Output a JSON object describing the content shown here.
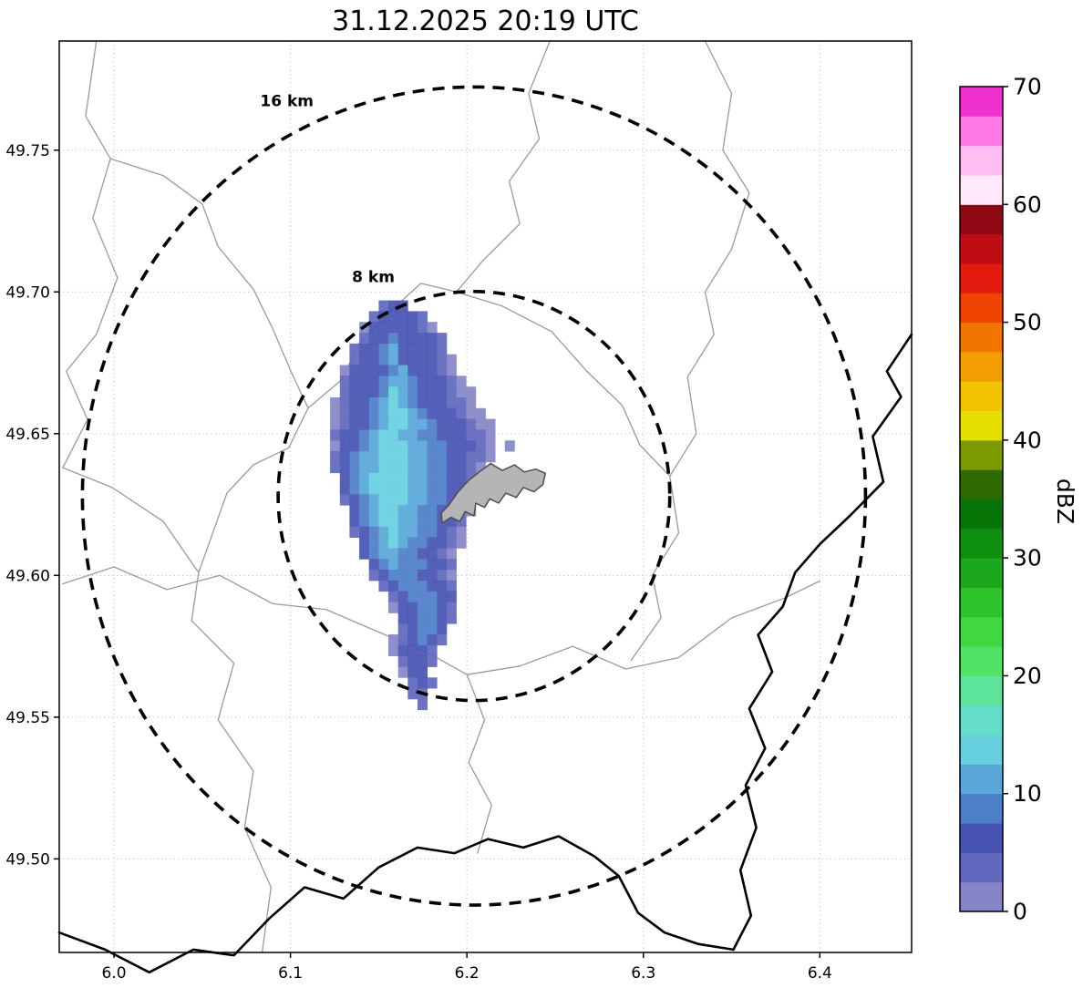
{
  "chart_data": {
    "type": "heatmap",
    "title": "31.12.2025 20:19 UTC",
    "axes": {
      "xlim": [
        5.969,
        6.452
      ],
      "ylim": [
        49.467,
        49.7885
      ],
      "x_ticks": [
        6.0,
        6.1,
        6.2,
        6.3,
        6.4
      ],
      "x_tick_labels": [
        "6.0",
        "6.1",
        "6.2",
        "6.3",
        "6.4"
      ],
      "y_ticks": [
        49.5,
        49.55,
        49.6,
        49.65,
        49.7,
        49.75
      ],
      "y_tick_labels": [
        "49.50",
        "49.55",
        "49.60",
        "49.65",
        "49.70",
        "49.75"
      ],
      "grid": "dotted"
    },
    "colorbar": {
      "label": "dBZ",
      "min": 0,
      "max": 70,
      "ticks": [
        0,
        10,
        20,
        30,
        40,
        50,
        60,
        70
      ],
      "segment_size": 2.5,
      "colors": [
        "#8585c7",
        "#6067bd",
        "#4753b2",
        "#4d7ec8",
        "#58a7d8",
        "#66cfe0",
        "#63dcc8",
        "#5ce49a",
        "#50e365",
        "#3fd83f",
        "#2cc32c",
        "#1ca81c",
        "#0f8f0f",
        "#077407",
        "#2d6b00",
        "#7d9900",
        "#e6e000",
        "#f2c400",
        "#f29e00",
        "#f27500",
        "#ee4400",
        "#e31a0e",
        "#c00d14",
        "#8f0712",
        "#ffe9fb",
        "#ffbdf2",
        "#ff7ae4",
        "#ef2fd0"
      ]
    },
    "range_rings": {
      "center": [
        6.204,
        49.628
      ],
      "radii_km": [
        8,
        16
      ],
      "labels": [
        "8 km",
        "16 km"
      ],
      "label_positions": [
        [
          6.147,
          49.7035
        ],
        [
          6.098,
          49.7655
        ]
      ]
    },
    "radar_grid": {
      "lon0": 6.106,
      "lat0": 49.697,
      "dlon": 0.0055,
      "dlat": 0.0038,
      "levels": {
        "1": 1,
        "2": 4,
        "3": 6,
        "4": 9,
        "5": 11,
        "6": 14,
        "7": 16
      },
      "rows": [
        "........233.............",
        ".......233332...........",
        "......13333321..........",
        "......233433332.........",
        ".....2334533332.........",
        ".....23345333321........",
        "....133334533321........",
        "....2333455433321.......",
        "....23334654333211......",
        "...123345654333221......",
        "...1233456654333211.....",
        "...12334566554333211....",
        "...23345665544333221....",
        "...13345666554433321.1..",
        "...23455666554433221....",
        "...2345566655443321.....",
        "....345666655443321.2...",
        "....34566665544332......",
        "....23456665544321......",
        ".....3456655443321......",
        ".....345665544332.......",
        ".....234565544321.......",
        "......34565443321.......",
        "......3455443321........",
        ".......345444332........",
        ".......234443321........",
        "........23444332........",
        ".........2344433........",
        ".........1334432........",
        "..........334432........",
        "..........23443.........",
        ".........123432.........",
        ".........13332..........",
        "..........2332..........",
        "..........133...........",
        "...........232..........",
        "...........22...........",
        "............2..........."
      ]
    },
    "map_features": {
      "admin_color": "#9a9a9a",
      "border_color": "#000000",
      "urban_fill": "#b5b5b5",
      "urban_stroke": "#4d4d4d",
      "admin_lines": [
        [
          [
            5.99,
            49.7885
          ],
          [
            5.984,
            49.762
          ],
          [
            5.998,
            49.747
          ],
          [
            5.988,
            49.726
          ],
          [
            6.002,
            49.705
          ],
          [
            5.99,
            49.685
          ],
          [
            5.973,
            49.672
          ],
          [
            5.985,
            49.655
          ],
          [
            5.971,
            49.638
          ]
        ],
        [
          [
            5.971,
            49.638
          ],
          [
            5.999,
            49.631
          ],
          [
            6.028,
            49.619
          ],
          [
            6.048,
            49.601
          ],
          [
            6.044,
            49.584
          ],
          [
            6.068,
            49.569
          ],
          [
            6.059,
            49.549
          ],
          [
            6.079,
            49.531
          ],
          [
            6.074,
            49.511
          ],
          [
            6.089,
            49.49
          ],
          [
            6.084,
            49.467
          ]
        ],
        [
          [
            6.247,
            49.7885
          ],
          [
            6.235,
            49.77
          ],
          [
            6.241,
            49.754
          ],
          [
            6.224,
            49.739
          ],
          [
            6.23,
            49.724
          ],
          [
            6.209,
            49.711
          ],
          [
            6.194,
            49.7
          ],
          [
            6.174,
            49.703
          ],
          [
            6.158,
            49.694
          ],
          [
            6.139,
            49.682
          ],
          [
            6.129,
            49.669
          ],
          [
            6.11,
            49.659
          ],
          [
            6.099,
            49.645
          ],
          [
            6.079,
            49.639
          ],
          [
            6.064,
            49.629
          ],
          [
            6.048,
            49.601
          ]
        ],
        [
          [
            5.971,
            49.597
          ],
          [
            6.0,
            49.603
          ],
          [
            6.03,
            49.595
          ],
          [
            6.06,
            49.6
          ],
          [
            6.09,
            49.59
          ],
          [
            6.12,
            49.588
          ],
          [
            6.15,
            49.58
          ],
          [
            6.18,
            49.572
          ],
          [
            6.2,
            49.565
          ],
          [
            6.23,
            49.568
          ],
          [
            6.26,
            49.575
          ],
          [
            6.29,
            49.567
          ],
          [
            6.32,
            49.571
          ],
          [
            6.35,
            49.585
          ],
          [
            6.38,
            49.592
          ],
          [
            6.4,
            49.598
          ]
        ],
        [
          [
            6.335,
            49.7885
          ],
          [
            6.35,
            49.77
          ],
          [
            6.345,
            49.75
          ],
          [
            6.36,
            49.735
          ],
          [
            6.35,
            49.715
          ],
          [
            6.335,
            49.7
          ],
          [
            6.34,
            49.685
          ],
          [
            6.325,
            49.67
          ],
          [
            6.33,
            49.65
          ],
          [
            6.315,
            49.635
          ],
          [
            6.32,
            49.615
          ],
          [
            6.305,
            49.6
          ],
          [
            6.31,
            49.585
          ],
          [
            6.293,
            49.57
          ]
        ],
        [
          [
            6.194,
            49.7
          ],
          [
            6.22,
            49.695
          ],
          [
            6.248,
            49.686
          ],
          [
            6.268,
            49.672
          ],
          [
            6.288,
            49.66
          ],
          [
            6.298,
            49.646
          ],
          [
            6.315,
            49.635
          ]
        ],
        [
          [
            6.2,
            49.565
          ],
          [
            6.21,
            49.549
          ],
          [
            6.201,
            49.534
          ],
          [
            6.214,
            49.519
          ],
          [
            6.206,
            49.502
          ]
        ],
        [
          [
            5.998,
            49.747
          ],
          [
            6.028,
            49.741
          ],
          [
            6.05,
            49.731
          ],
          [
            6.059,
            49.716
          ],
          [
            6.079,
            49.701
          ],
          [
            6.09,
            49.687
          ],
          [
            6.101,
            49.671
          ],
          [
            6.11,
            49.659
          ]
        ]
      ],
      "border_lines": [
        [
          [
            6.452,
            49.685
          ],
          [
            6.438,
            49.672
          ],
          [
            6.446,
            49.663
          ],
          [
            6.43,
            49.649
          ],
          [
            6.436,
            49.633
          ],
          [
            6.417,
            49.621
          ],
          [
            6.4,
            49.611
          ],
          [
            6.386,
            49.601
          ],
          [
            6.379,
            49.589
          ],
          [
            6.365,
            49.579
          ],
          [
            6.373,
            49.566
          ],
          [
            6.36,
            49.553
          ],
          [
            6.369,
            49.539
          ],
          [
            6.358,
            49.526
          ],
          [
            6.364,
            49.511
          ],
          [
            6.355,
            49.496
          ],
          [
            6.361,
            49.48
          ],
          [
            6.351,
            49.468
          ]
        ],
        [
          [
            5.969,
            49.474
          ],
          [
            5.995,
            49.468
          ],
          [
            6.02,
            49.46
          ],
          [
            6.045,
            49.468
          ],
          [
            6.068,
            49.466
          ],
          [
            6.088,
            49.479
          ],
          [
            6.108,
            49.49
          ],
          [
            6.13,
            49.486
          ],
          [
            6.15,
            49.497
          ],
          [
            6.172,
            49.504
          ],
          [
            6.193,
            49.502
          ],
          [
            6.212,
            49.507
          ],
          [
            6.232,
            49.504
          ],
          [
            6.252,
            49.508
          ],
          [
            6.272,
            49.501
          ],
          [
            6.286,
            49.494
          ],
          [
            6.297,
            49.481
          ],
          [
            6.312,
            49.474
          ],
          [
            6.331,
            49.47
          ],
          [
            6.351,
            49.468
          ]
        ]
      ],
      "urban_area": [
        [
          6.186,
          49.6185
        ],
        [
          6.191,
          49.6205
        ],
        [
          6.196,
          49.619
        ],
        [
          6.199,
          49.6225
        ],
        [
          6.204,
          49.621
        ],
        [
          6.205,
          49.6255
        ],
        [
          6.21,
          49.624
        ],
        [
          6.213,
          49.627
        ],
        [
          6.218,
          49.6255
        ],
        [
          6.222,
          49.629
        ],
        [
          6.228,
          49.6275
        ],
        [
          6.232,
          49.631
        ],
        [
          6.238,
          49.6295
        ],
        [
          6.243,
          49.632
        ],
        [
          6.2445,
          49.636
        ],
        [
          6.239,
          49.6375
        ],
        [
          6.2325,
          49.6365
        ],
        [
          6.227,
          49.639
        ],
        [
          6.22,
          49.637
        ],
        [
          6.2135,
          49.6395
        ],
        [
          6.207,
          49.6365
        ],
        [
          6.201,
          49.6335
        ],
        [
          6.195,
          49.6295
        ],
        [
          6.19,
          49.625
        ],
        [
          6.1855,
          49.622
        ]
      ]
    }
  }
}
